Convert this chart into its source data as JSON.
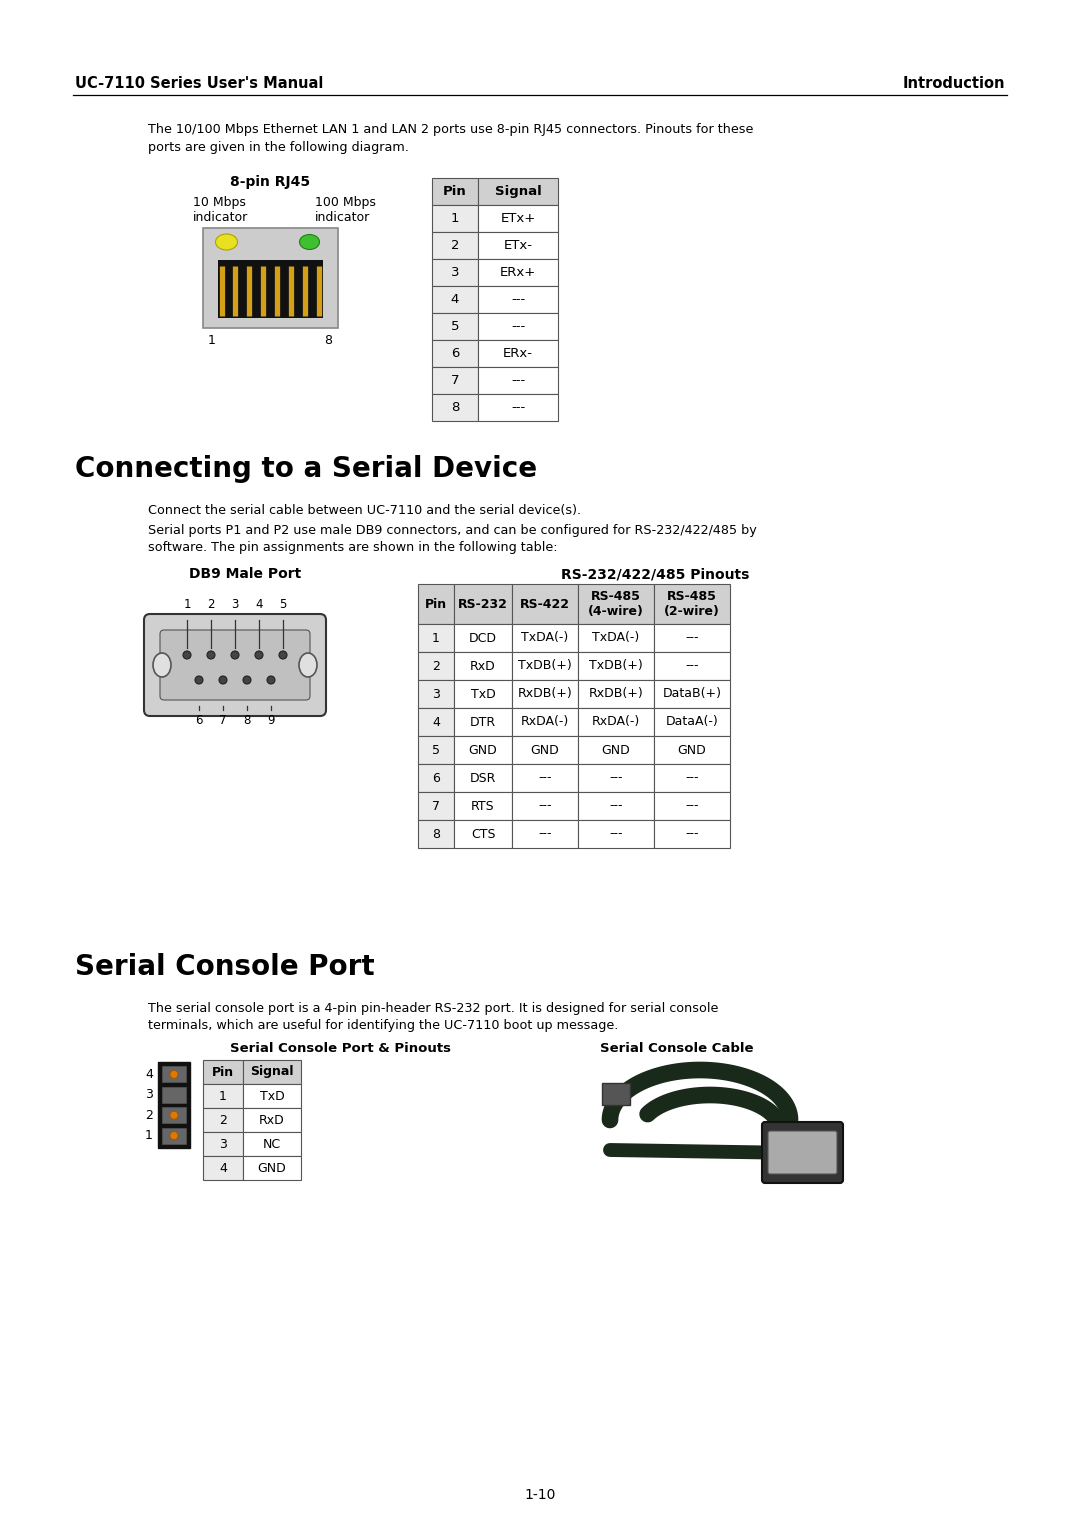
{
  "bg_color": "#ffffff",
  "header_left": "UC-7110 Series User's Manual",
  "header_right": "Introduction",
  "rj45_title": "8-pin RJ45",
  "rj45_label_left1": "10 Mbps",
  "rj45_label_left2": "indicator",
  "rj45_label_right1": "100 Mbps",
  "rj45_label_right2": "indicator",
  "rj45_table_headers": [
    "Pin",
    "Signal"
  ],
  "rj45_table_data": [
    [
      "1",
      "ETx+"
    ],
    [
      "2",
      "ETx-"
    ],
    [
      "3",
      "ERx+"
    ],
    [
      "4",
      "---"
    ],
    [
      "5",
      "---"
    ],
    [
      "6",
      "ERx-"
    ],
    [
      "7",
      "---"
    ],
    [
      "8",
      "---"
    ]
  ],
  "intro_text1": "The 10/100 Mbps Ethernet LAN 1 and LAN 2 ports use 8-pin RJ45 connectors. Pinouts for these",
  "intro_text2": "ports are given in the following diagram.",
  "section1_title": "Connecting to a Serial Device",
  "section1_para1": "Connect the serial cable between UC-7110 and the serial device(s).",
  "section1_para2": "Serial ports P1 and P2 use male DB9 connectors, and can be configured for RS-232/422/485 by",
  "section1_para3": "software. The pin assignments are shown in the following table:",
  "db9_title": "DB9 Male Port",
  "rs232_title": "RS-232/422/485 Pinouts",
  "rs232_table_headers": [
    "Pin",
    "RS-232",
    "RS-422",
    "RS-485\n(4-wire)",
    "RS-485\n(2-wire)"
  ],
  "rs232_table_data": [
    [
      "1",
      "DCD",
      "TxDA(-)",
      "TxDA(-)",
      "---"
    ],
    [
      "2",
      "RxD",
      "TxDB(+)",
      "TxDB(+)",
      "---"
    ],
    [
      "3",
      "TxD",
      "RxDB(+)",
      "RxDB(+)",
      "DataB(+)"
    ],
    [
      "4",
      "DTR",
      "RxDA(-)",
      "RxDA(-)",
      "DataA(-)"
    ],
    [
      "5",
      "GND",
      "GND",
      "GND",
      "GND"
    ],
    [
      "6",
      "DSR",
      "---",
      "---",
      "---"
    ],
    [
      "7",
      "RTS",
      "---",
      "---",
      "---"
    ],
    [
      "8",
      "CTS",
      "---",
      "---",
      "---"
    ]
  ],
  "section2_title": "Serial Console Port",
  "section2_para1": "The serial console port is a 4-pin pin-header RS-232 port. It is designed for serial console",
  "section2_para2": "terminals, which are useful for identifying the UC-7110 boot up message.",
  "console_port_title": "Serial Console Port & Pinouts",
  "console_cable_title": "Serial Console Cable",
  "console_table_headers": [
    "Pin",
    "Signal"
  ],
  "console_table_data": [
    [
      "1",
      "TxD"
    ],
    [
      "2",
      "RxD"
    ],
    [
      "3",
      "NC"
    ],
    [
      "4",
      "GND"
    ]
  ],
  "page_number": "1-10"
}
